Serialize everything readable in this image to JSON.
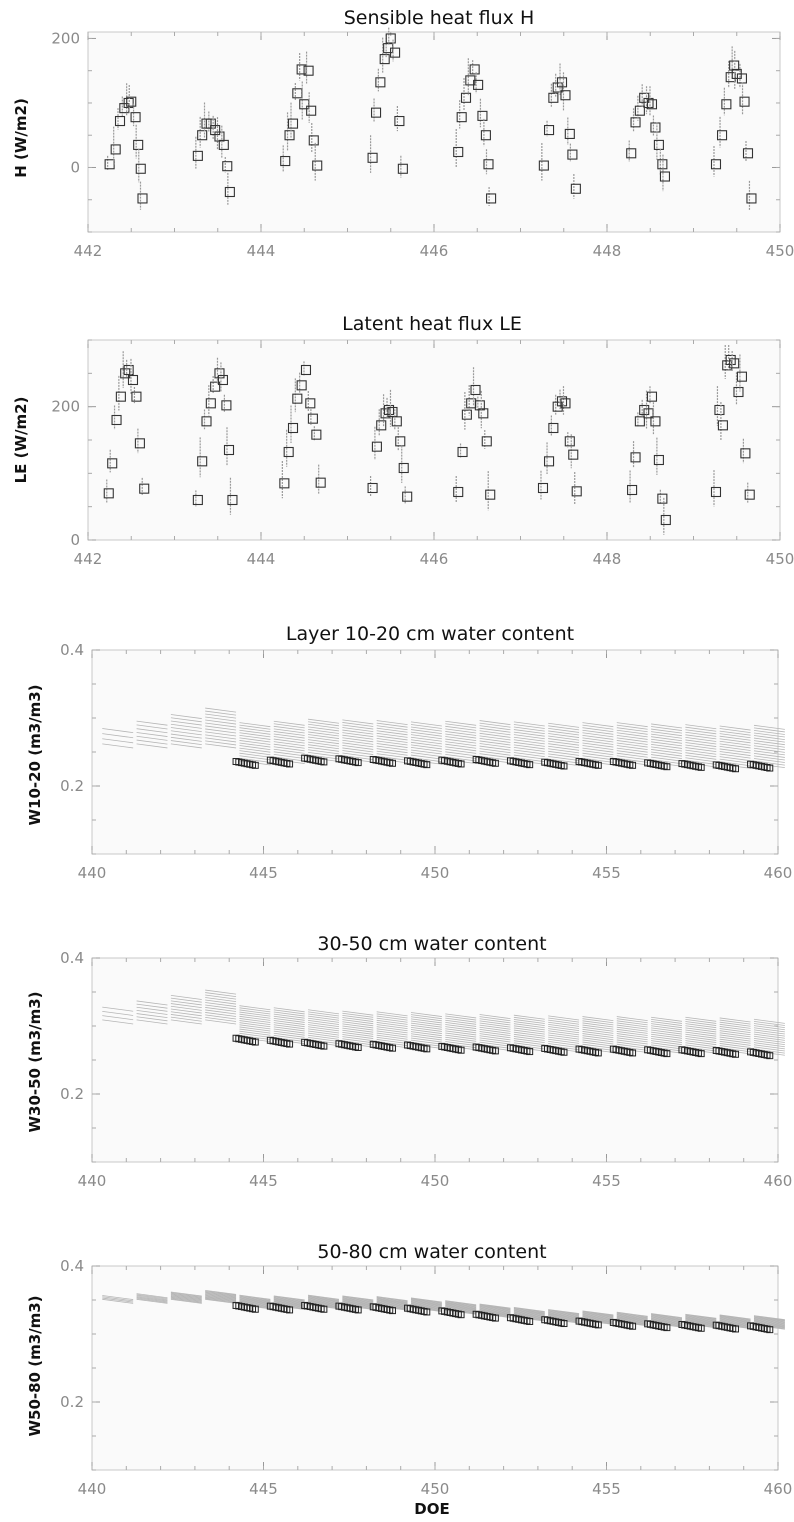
{
  "chart_data": [
    {
      "type": "scatter",
      "title": "Sensible heat flux H",
      "ylabel": "H (W/m2)",
      "xlabel": "",
      "xlim": [
        442,
        450
      ],
      "ylim": [
        -100,
        210
      ],
      "xticks": [
        442,
        444,
        446,
        448,
        450
      ],
      "yticks": [
        0,
        200
      ],
      "grid": false,
      "series": [
        {
          "values": [
            [
              442.25,
              5
            ],
            [
              442.32,
              28
            ],
            [
              442.37,
              72
            ],
            [
              442.42,
              92
            ],
            [
              442.47,
              100
            ],
            [
              442.5,
              102
            ],
            [
              442.55,
              78
            ],
            [
              442.58,
              35
            ],
            [
              442.61,
              -2
            ],
            [
              442.63,
              -48
            ],
            [
              443.27,
              18
            ],
            [
              443.32,
              50
            ],
            [
              443.37,
              68
            ],
            [
              443.42,
              68
            ],
            [
              443.47,
              58
            ],
            [
              443.52,
              48
            ],
            [
              443.57,
              35
            ],
            [
              443.61,
              2
            ],
            [
              443.64,
              -38
            ],
            [
              444.28,
              10
            ],
            [
              444.33,
              50
            ],
            [
              444.37,
              68
            ],
            [
              444.42,
              115
            ],
            [
              444.47,
              152
            ],
            [
              444.5,
              98
            ],
            [
              444.55,
              150
            ],
            [
              444.58,
              88
            ],
            [
              444.61,
              42
            ],
            [
              444.65,
              3
            ],
            [
              445.29,
              15
            ],
            [
              445.33,
              85
            ],
            [
              445.38,
              132
            ],
            [
              445.43,
              168
            ],
            [
              445.47,
              185
            ],
            [
              445.5,
              200
            ],
            [
              445.55,
              178
            ],
            [
              445.6,
              72
            ],
            [
              445.64,
              -2
            ],
            [
              446.28,
              24
            ],
            [
              446.32,
              78
            ],
            [
              446.37,
              108
            ],
            [
              446.42,
              135
            ],
            [
              446.47,
              152
            ],
            [
              446.51,
              128
            ],
            [
              446.56,
              80
            ],
            [
              446.6,
              50
            ],
            [
              446.63,
              5
            ],
            [
              446.66,
              -48
            ],
            [
              447.27,
              3
            ],
            [
              447.33,
              58
            ],
            [
              447.38,
              108
            ],
            [
              447.43,
              124
            ],
            [
              447.48,
              132
            ],
            [
              447.52,
              112
            ],
            [
              447.57,
              52
            ],
            [
              447.6,
              20
            ],
            [
              447.64,
              -33
            ],
            [
              448.28,
              22
            ],
            [
              448.33,
              70
            ],
            [
              448.38,
              88
            ],
            [
              448.43,
              108
            ],
            [
              448.48,
              100
            ],
            [
              448.52,
              98
            ],
            [
              448.56,
              62
            ],
            [
              448.6,
              35
            ],
            [
              448.64,
              5
            ],
            [
              448.67,
              -14
            ],
            [
              449.26,
              5
            ],
            [
              449.33,
              50
            ],
            [
              449.38,
              98
            ],
            [
              449.43,
              140
            ],
            [
              449.47,
              158
            ],
            [
              449.5,
              145
            ],
            [
              449.56,
              138
            ],
            [
              449.59,
              102
            ],
            [
              449.63,
              22
            ],
            [
              449.67,
              -48
            ]
          ]
        }
      ]
    },
    {
      "type": "scatter",
      "title": "Latent heat flux LE",
      "ylabel": "LE (W/m2)",
      "xlabel": "",
      "xlim": [
        442,
        450
      ],
      "ylim": [
        0,
        300
      ],
      "xticks": [
        442,
        444,
        446,
        448,
        450
      ],
      "yticks": [
        0,
        200
      ],
      "grid": false,
      "series": [
        {
          "values": [
            [
              442.24,
              70
            ],
            [
              442.28,
              115
            ],
            [
              442.33,
              180
            ],
            [
              442.38,
              215
            ],
            [
              442.43,
              250
            ],
            [
              442.47,
              255
            ],
            [
              442.52,
              240
            ],
            [
              442.56,
              215
            ],
            [
              442.6,
              145
            ],
            [
              442.65,
              77
            ],
            [
              443.27,
              60
            ],
            [
              443.32,
              118
            ],
            [
              443.37,
              178
            ],
            [
              443.42,
              205
            ],
            [
              443.47,
              230
            ],
            [
              443.52,
              250
            ],
            [
              443.56,
              240
            ],
            [
              443.6,
              202
            ],
            [
              443.63,
              135
            ],
            [
              443.67,
              60
            ],
            [
              444.27,
              85
            ],
            [
              444.32,
              132
            ],
            [
              444.37,
              168
            ],
            [
              444.42,
              212
            ],
            [
              444.47,
              232
            ],
            [
              444.52,
              255
            ],
            [
              444.57,
              205
            ],
            [
              444.6,
              182
            ],
            [
              444.64,
              158
            ],
            [
              444.69,
              86
            ],
            [
              445.29,
              78
            ],
            [
              445.34,
              140
            ],
            [
              445.39,
              172
            ],
            [
              445.44,
              190
            ],
            [
              445.48,
              195
            ],
            [
              445.52,
              192
            ],
            [
              445.57,
              178
            ],
            [
              445.61,
              148
            ],
            [
              445.65,
              108
            ],
            [
              445.69,
              65
            ],
            [
              446.28,
              72
            ],
            [
              446.33,
              132
            ],
            [
              446.38,
              188
            ],
            [
              446.43,
              205
            ],
            [
              446.48,
              225
            ],
            [
              446.53,
              202
            ],
            [
              446.57,
              190
            ],
            [
              446.61,
              148
            ],
            [
              446.65,
              68
            ],
            [
              447.26,
              78
            ],
            [
              447.33,
              118
            ],
            [
              447.38,
              168
            ],
            [
              447.43,
              200
            ],
            [
              447.48,
              208
            ],
            [
              447.52,
              205
            ],
            [
              447.57,
              148
            ],
            [
              447.61,
              128
            ],
            [
              447.65,
              73
            ],
            [
              448.29,
              75
            ],
            [
              448.33,
              124
            ],
            [
              448.38,
              178
            ],
            [
              448.43,
              195
            ],
            [
              448.48,
              190
            ],
            [
              448.52,
              215
            ],
            [
              448.56,
              178
            ],
            [
              448.6,
              120
            ],
            [
              448.64,
              62
            ],
            [
              448.68,
              30
            ],
            [
              449.26,
              72
            ],
            [
              449.3,
              195
            ],
            [
              449.34,
              172
            ],
            [
              449.39,
              262
            ],
            [
              449.43,
              270
            ],
            [
              449.47,
              265
            ],
            [
              449.52,
              222
            ],
            [
              449.56,
              245
            ],
            [
              449.6,
              130
            ],
            [
              449.65,
              68
            ]
          ]
        }
      ]
    },
    {
      "type": "scatter",
      "title": "Layer 10-20 cm water content",
      "ylabel": "W10-20 (m3/m3)",
      "xlabel": "",
      "xlim": [
        440,
        460
      ],
      "ylim": [
        0.1,
        0.4
      ],
      "xticks": [
        440,
        445,
        450,
        455,
        460
      ],
      "yticks": [
        0.2,
        0.4
      ],
      "grid": false,
      "series": [
        {
          "values": [
            [
              444.5,
              0.233
            ],
            [
              445.5,
              0.235
            ],
            [
              446.5,
              0.238
            ],
            [
              447.5,
              0.237
            ],
            [
              448.5,
              0.236
            ],
            [
              449.5,
              0.234
            ],
            [
              450.5,
              0.235
            ],
            [
              451.5,
              0.236
            ],
            [
              452.5,
              0.234
            ],
            [
              453.5,
              0.232
            ],
            [
              454.5,
              0.233
            ],
            [
              455.5,
              0.233
            ],
            [
              456.5,
              0.231
            ],
            [
              457.5,
              0.23
            ],
            [
              458.5,
              0.228
            ],
            [
              459.5,
              0.229
            ]
          ]
        }
      ]
    },
    {
      "type": "scatter",
      "title": "30-50 cm water content",
      "ylabel": "W30-50 (m3/m3)",
      "xlabel": "",
      "xlim": [
        440,
        460
      ],
      "ylim": [
        0.1,
        0.4
      ],
      "xticks": [
        440,
        445,
        450,
        455,
        460
      ],
      "yticks": [
        0.2,
        0.4
      ],
      "grid": false,
      "series": [
        {
          "values": [
            [
              444.5,
              0.279
            ],
            [
              445.5,
              0.276
            ],
            [
              446.5,
              0.273
            ],
            [
              447.5,
              0.271
            ],
            [
              448.5,
              0.27
            ],
            [
              449.5,
              0.269
            ],
            [
              450.5,
              0.267
            ],
            [
              451.5,
              0.266
            ],
            [
              452.5,
              0.265
            ],
            [
              453.5,
              0.264
            ],
            [
              454.5,
              0.263
            ],
            [
              455.5,
              0.263
            ],
            [
              456.5,
              0.262
            ],
            [
              457.5,
              0.262
            ],
            [
              458.5,
              0.261
            ],
            [
              459.5,
              0.259
            ]
          ]
        }
      ]
    },
    {
      "type": "scatter",
      "title": "50-80 cm water content",
      "ylabel": "W50-80 (m3/m3)",
      "xlabel": "DOE",
      "xlim": [
        440,
        460
      ],
      "ylim": [
        0.1,
        0.4
      ],
      "xticks": [
        440,
        445,
        450,
        455,
        460
      ],
      "yticks": [
        0.2,
        0.4
      ],
      "grid": false,
      "series": [
        {
          "values": [
            [
              444.5,
              0.339
            ],
            [
              445.5,
              0.338
            ],
            [
              446.5,
              0.339
            ],
            [
              447.5,
              0.338
            ],
            [
              448.5,
              0.337
            ],
            [
              449.5,
              0.335
            ],
            [
              450.5,
              0.331
            ],
            [
              451.5,
              0.326
            ],
            [
              452.5,
              0.321
            ],
            [
              453.5,
              0.318
            ],
            [
              454.5,
              0.316
            ],
            [
              455.5,
              0.314
            ],
            [
              456.5,
              0.312
            ],
            [
              457.5,
              0.311
            ],
            [
              458.5,
              0.31
            ],
            [
              459.5,
              0.309
            ]
          ]
        }
      ]
    }
  ]
}
